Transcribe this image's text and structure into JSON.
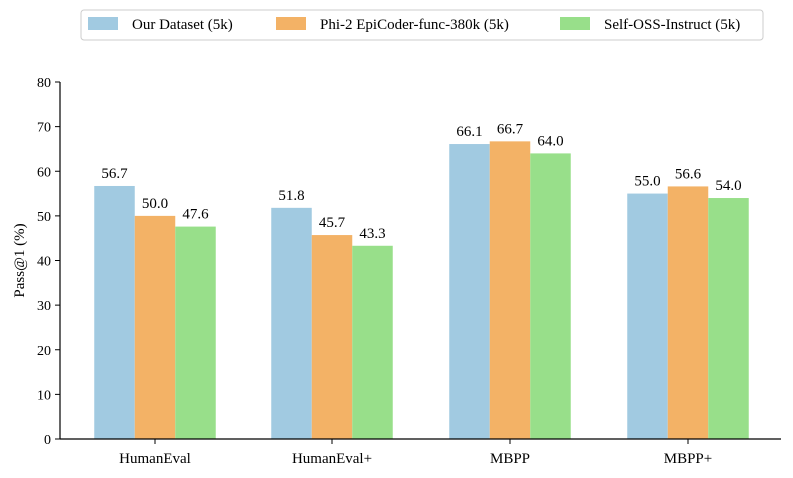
{
  "chart_data": {
    "type": "bar",
    "title": "",
    "xlabel": "",
    "ylabel": "Pass@1 (%)",
    "ylim": [
      0,
      80
    ],
    "yticks": [
      0,
      10,
      20,
      30,
      40,
      50,
      60,
      70,
      80
    ],
    "categories": [
      "HumanEval",
      "HumanEval+",
      "MBPP",
      "MBPP+"
    ],
    "series": [
      {
        "name": "Our Dataset (5k)",
        "color": "#a1cae1",
        "values": [
          56.7,
          51.8,
          66.1,
          55.0
        ],
        "labels": [
          "56.7",
          "51.8",
          "66.1",
          "55.0"
        ]
      },
      {
        "name": "Phi-2 EpiCoder-func-380k (5k)",
        "color": "#f3b266",
        "values": [
          50.0,
          45.7,
          66.7,
          56.6
        ],
        "labels": [
          "50.0",
          "45.7",
          "66.7",
          "56.6"
        ]
      },
      {
        "name": "Self-OSS-Instruct (5k)",
        "color": "#98df8a",
        "values": [
          47.6,
          43.3,
          64.0,
          54.0
        ],
        "labels": [
          "47.6",
          "43.3",
          "64.0",
          "54.0"
        ]
      }
    ],
    "legend_position": "top-center",
    "grid": false
  }
}
